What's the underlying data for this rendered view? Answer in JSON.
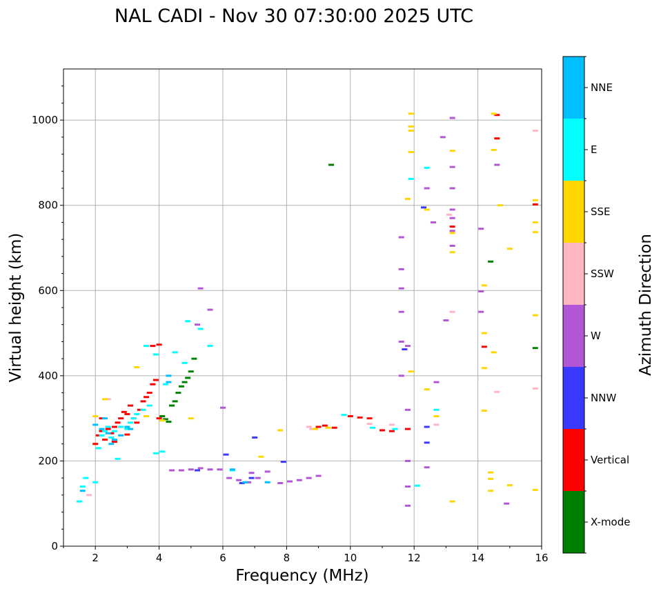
{
  "chart_data": {
    "type": "scatter",
    "title": "NAL CADI - Nov 30 07:30:00 2025 UTC",
    "xlabel": "Frequency (MHz)",
    "ylabel": "Virtual height (km)",
    "xlim": [
      1,
      16
    ],
    "ylim": [
      0,
      1120
    ],
    "xticks": [
      2,
      4,
      6,
      8,
      10,
      12,
      14,
      16
    ],
    "yticks": [
      0,
      200,
      400,
      600,
      800,
      1000
    ],
    "grid": true,
    "colorbar": {
      "label": "Azimuth Direction",
      "categories": [
        "X-mode",
        "Vertical",
        "NNW",
        "W",
        "SSW",
        "SSE",
        "E",
        "NNE"
      ],
      "colors": [
        "#008000",
        "#ff0000",
        "#3a3aff",
        "#b356d6",
        "#ffb6c1",
        "#ffd700",
        "#00ffff",
        "#00bfff"
      ]
    },
    "series": [
      {
        "name": "X-mode",
        "points": [
          [
            4.1,
            305
          ],
          [
            4.2,
            298
          ],
          [
            4.5,
            340
          ],
          [
            4.6,
            360
          ],
          [
            4.7,
            375
          ],
          [
            4.8,
            385
          ],
          [
            4.9,
            395
          ],
          [
            5.0,
            410
          ],
          [
            5.1,
            440
          ],
          [
            4.4,
            330
          ],
          [
            9.4,
            895
          ],
          [
            14.4,
            668
          ],
          [
            15.8,
            465
          ],
          [
            4.3,
            292
          ]
        ]
      },
      {
        "name": "Vertical",
        "points": [
          [
            2.0,
            240
          ],
          [
            2.1,
            260
          ],
          [
            2.2,
            270
          ],
          [
            2.3,
            250
          ],
          [
            2.4,
            275
          ],
          [
            2.5,
            265
          ],
          [
            2.6,
            280
          ],
          [
            2.7,
            290
          ],
          [
            2.8,
            300
          ],
          [
            2.9,
            315
          ],
          [
            3.0,
            310
          ],
          [
            3.1,
            330
          ],
          [
            3.2,
            300
          ],
          [
            3.3,
            290
          ],
          [
            3.4,
            320
          ],
          [
            3.5,
            340
          ],
          [
            3.6,
            350
          ],
          [
            3.7,
            360
          ],
          [
            3.8,
            380
          ],
          [
            3.9,
            390
          ],
          [
            4.0,
            300
          ],
          [
            3.8,
            470
          ],
          [
            4.0,
            473
          ],
          [
            9.0,
            280
          ],
          [
            9.2,
            283
          ],
          [
            9.5,
            278
          ],
          [
            10.0,
            305
          ],
          [
            10.3,
            302
          ],
          [
            10.6,
            300
          ],
          [
            11.0,
            272
          ],
          [
            11.3,
            270
          ],
          [
            11.8,
            275
          ],
          [
            13.2,
            750
          ],
          [
            14.2,
            468
          ],
          [
            14.6,
            1012
          ],
          [
            14.6,
            957
          ],
          [
            15.8,
            802
          ],
          [
            2.2,
            300
          ],
          [
            2.6,
            245
          ],
          [
            3.0,
            262
          ]
        ]
      },
      {
        "name": "NNW",
        "points": [
          [
            5.2,
            178
          ],
          [
            6.1,
            215
          ],
          [
            6.6,
            148
          ],
          [
            6.9,
            160
          ],
          [
            7.0,
            255
          ],
          [
            12.3,
            795
          ],
          [
            12.4,
            243
          ],
          [
            12.4,
            280
          ],
          [
            11.7,
            462
          ],
          [
            7.9,
            198
          ]
        ]
      },
      {
        "name": "W",
        "points": [
          [
            4.4,
            178
          ],
          [
            4.7,
            178
          ],
          [
            5.0,
            180
          ],
          [
            5.3,
            183
          ],
          [
            5.6,
            180
          ],
          [
            5.9,
            180
          ],
          [
            6.2,
            160
          ],
          [
            6.5,
            155
          ],
          [
            6.8,
            150
          ],
          [
            7.1,
            160
          ],
          [
            7.4,
            175
          ],
          [
            7.8,
            148
          ],
          [
            8.1,
            152
          ],
          [
            8.4,
            155
          ],
          [
            8.7,
            160
          ],
          [
            9.0,
            165
          ],
          [
            5.6,
            555
          ],
          [
            5.3,
            605
          ],
          [
            5.2,
            520
          ],
          [
            6.0,
            325
          ],
          [
            11.6,
            725
          ],
          [
            11.6,
            650
          ],
          [
            11.6,
            605
          ],
          [
            11.6,
            550
          ],
          [
            11.6,
            480
          ],
          [
            11.6,
            400
          ],
          [
            11.8,
            470
          ],
          [
            11.8,
            320
          ],
          [
            11.8,
            200
          ],
          [
            11.8,
            140
          ],
          [
            11.8,
            95
          ],
          [
            12.4,
            840
          ],
          [
            12.6,
            760
          ],
          [
            12.9,
            960
          ],
          [
            13.2,
            1005
          ],
          [
            13.2,
            890
          ],
          [
            13.2,
            840
          ],
          [
            13.2,
            790
          ],
          [
            13.2,
            770
          ],
          [
            13.2,
            740
          ],
          [
            13.2,
            705
          ],
          [
            14.1,
            745
          ],
          [
            14.1,
            598
          ],
          [
            14.1,
            550
          ],
          [
            14.6,
            895
          ],
          [
            14.9,
            100
          ],
          [
            12.4,
            185
          ],
          [
            12.7,
            385
          ],
          [
            13.0,
            530
          ],
          [
            6.9,
            172
          ]
        ]
      },
      {
        "name": "SSW",
        "points": [
          [
            1.8,
            120
          ],
          [
            8.7,
            280
          ],
          [
            8.8,
            275
          ],
          [
            10.6,
            287
          ],
          [
            12.7,
            285
          ],
          [
            13.2,
            550
          ],
          [
            13.1,
            778
          ],
          [
            14.6,
            362
          ],
          [
            15.8,
            975
          ],
          [
            15.8,
            370
          ],
          [
            2.4,
            345
          ],
          [
            11.3,
            285
          ]
        ]
      },
      {
        "name": "SSE",
        "points": [
          [
            2.0,
            305
          ],
          [
            2.3,
            345
          ],
          [
            3.3,
            420
          ],
          [
            4.1,
            295
          ],
          [
            5.0,
            300
          ],
          [
            7.2,
            210
          ],
          [
            7.8,
            272
          ],
          [
            8.9,
            275
          ],
          [
            9.3,
            278
          ],
          [
            11.9,
            1015
          ],
          [
            11.9,
            985
          ],
          [
            11.9,
            975
          ],
          [
            11.9,
            925
          ],
          [
            11.8,
            815
          ],
          [
            11.9,
            410
          ],
          [
            12.4,
            790
          ],
          [
            12.4,
            368
          ],
          [
            12.7,
            305
          ],
          [
            13.2,
            928
          ],
          [
            13.2,
            735
          ],
          [
            13.2,
            690
          ],
          [
            13.2,
            105
          ],
          [
            14.2,
            612
          ],
          [
            14.2,
            500
          ],
          [
            14.2,
            418
          ],
          [
            14.2,
            318
          ],
          [
            14.5,
            1015
          ],
          [
            14.5,
            930
          ],
          [
            14.7,
            800
          ],
          [
            14.5,
            455
          ],
          [
            14.4,
            173
          ],
          [
            14.4,
            158
          ],
          [
            14.4,
            130
          ],
          [
            15.0,
            698
          ],
          [
            15.0,
            143
          ],
          [
            15.8,
            812
          ],
          [
            15.8,
            760
          ],
          [
            15.8,
            737
          ],
          [
            15.8,
            542
          ],
          [
            15.8,
            132
          ],
          [
            3.6,
            305
          ]
        ]
      },
      {
        "name": "E",
        "points": [
          [
            1.5,
            105
          ],
          [
            1.6,
            140
          ],
          [
            1.7,
            160
          ],
          [
            2.0,
            150
          ],
          [
            2.1,
            230
          ],
          [
            2.2,
            260
          ],
          [
            2.3,
            270
          ],
          [
            2.4,
            280
          ],
          [
            2.5,
            255
          ],
          [
            2.6,
            270
          ],
          [
            2.8,
            280
          ],
          [
            3.0,
            275
          ],
          [
            3.1,
            290
          ],
          [
            3.2,
            300
          ],
          [
            3.3,
            310
          ],
          [
            3.5,
            320
          ],
          [
            3.7,
            330
          ],
          [
            3.9,
            450
          ],
          [
            3.9,
            218
          ],
          [
            4.1,
            222
          ],
          [
            4.2,
            380
          ],
          [
            4.5,
            455
          ],
          [
            4.8,
            430
          ],
          [
            4.9,
            528
          ],
          [
            5.3,
            510
          ],
          [
            5.6,
            470
          ],
          [
            6.3,
            178
          ],
          [
            9.8,
            308
          ],
          [
            10.7,
            278
          ],
          [
            11.4,
            275
          ],
          [
            11.9,
            862
          ],
          [
            12.4,
            888
          ],
          [
            12.1,
            142
          ],
          [
            12.7,
            320
          ],
          [
            3.6,
            470
          ],
          [
            2.7,
            205
          ]
        ]
      },
      {
        "name": "NNE",
        "points": [
          [
            1.6,
            130
          ],
          [
            2.0,
            285
          ],
          [
            2.2,
            275
          ],
          [
            2.4,
            265
          ],
          [
            2.5,
            240
          ],
          [
            2.6,
            250
          ],
          [
            2.8,
            260
          ],
          [
            3.0,
            280
          ],
          [
            3.1,
            275
          ],
          [
            4.3,
            385
          ],
          [
            4.3,
            400
          ],
          [
            6.3,
            180
          ],
          [
            6.7,
            150
          ],
          [
            7.4,
            150
          ],
          [
            2.3,
            300
          ]
        ]
      }
    ]
  }
}
